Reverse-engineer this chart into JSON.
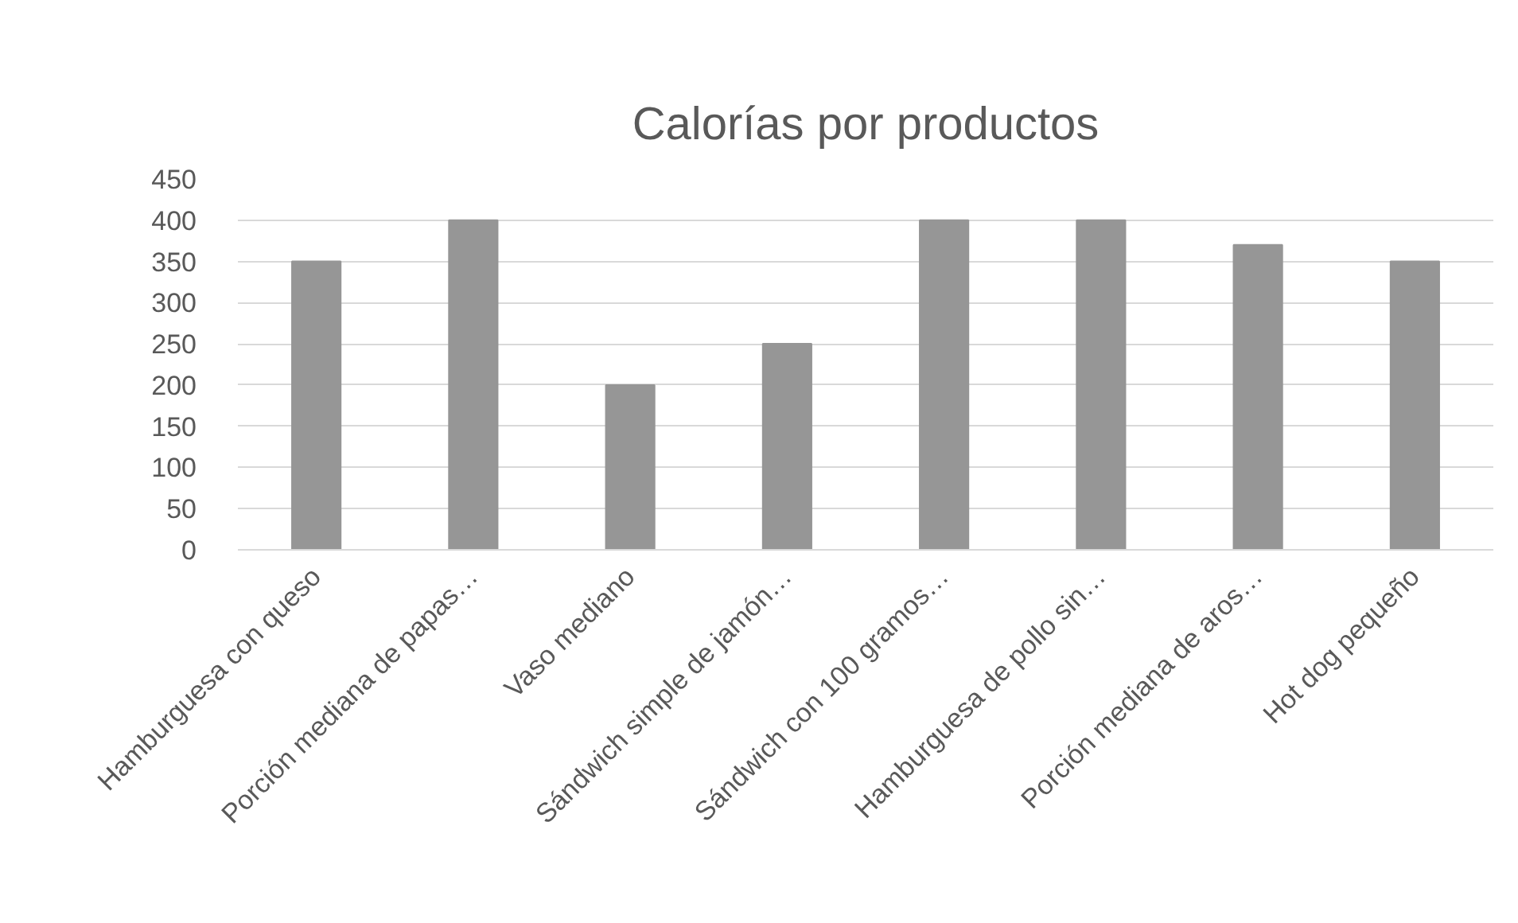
{
  "chart_data": {
    "type": "bar",
    "title": "Calorías por productos",
    "categories": [
      "Hamburguesa con queso",
      "Porción mediana de papas…",
      "Vaso mediano",
      "Sándwich simple de jamón…",
      "Sándwich con 100 gramos…",
      "Hamburguesa de pollo sin…",
      "Porción mediana de aros…",
      "Hot dog pequeño"
    ],
    "values": [
      350,
      400,
      200,
      250,
      400,
      400,
      370,
      350
    ],
    "color": "#969696",
    "ylim": [
      0,
      450
    ],
    "yticks": [
      0,
      50,
      100,
      150,
      200,
      250,
      300,
      350,
      400,
      450
    ],
    "grid": "y"
  }
}
